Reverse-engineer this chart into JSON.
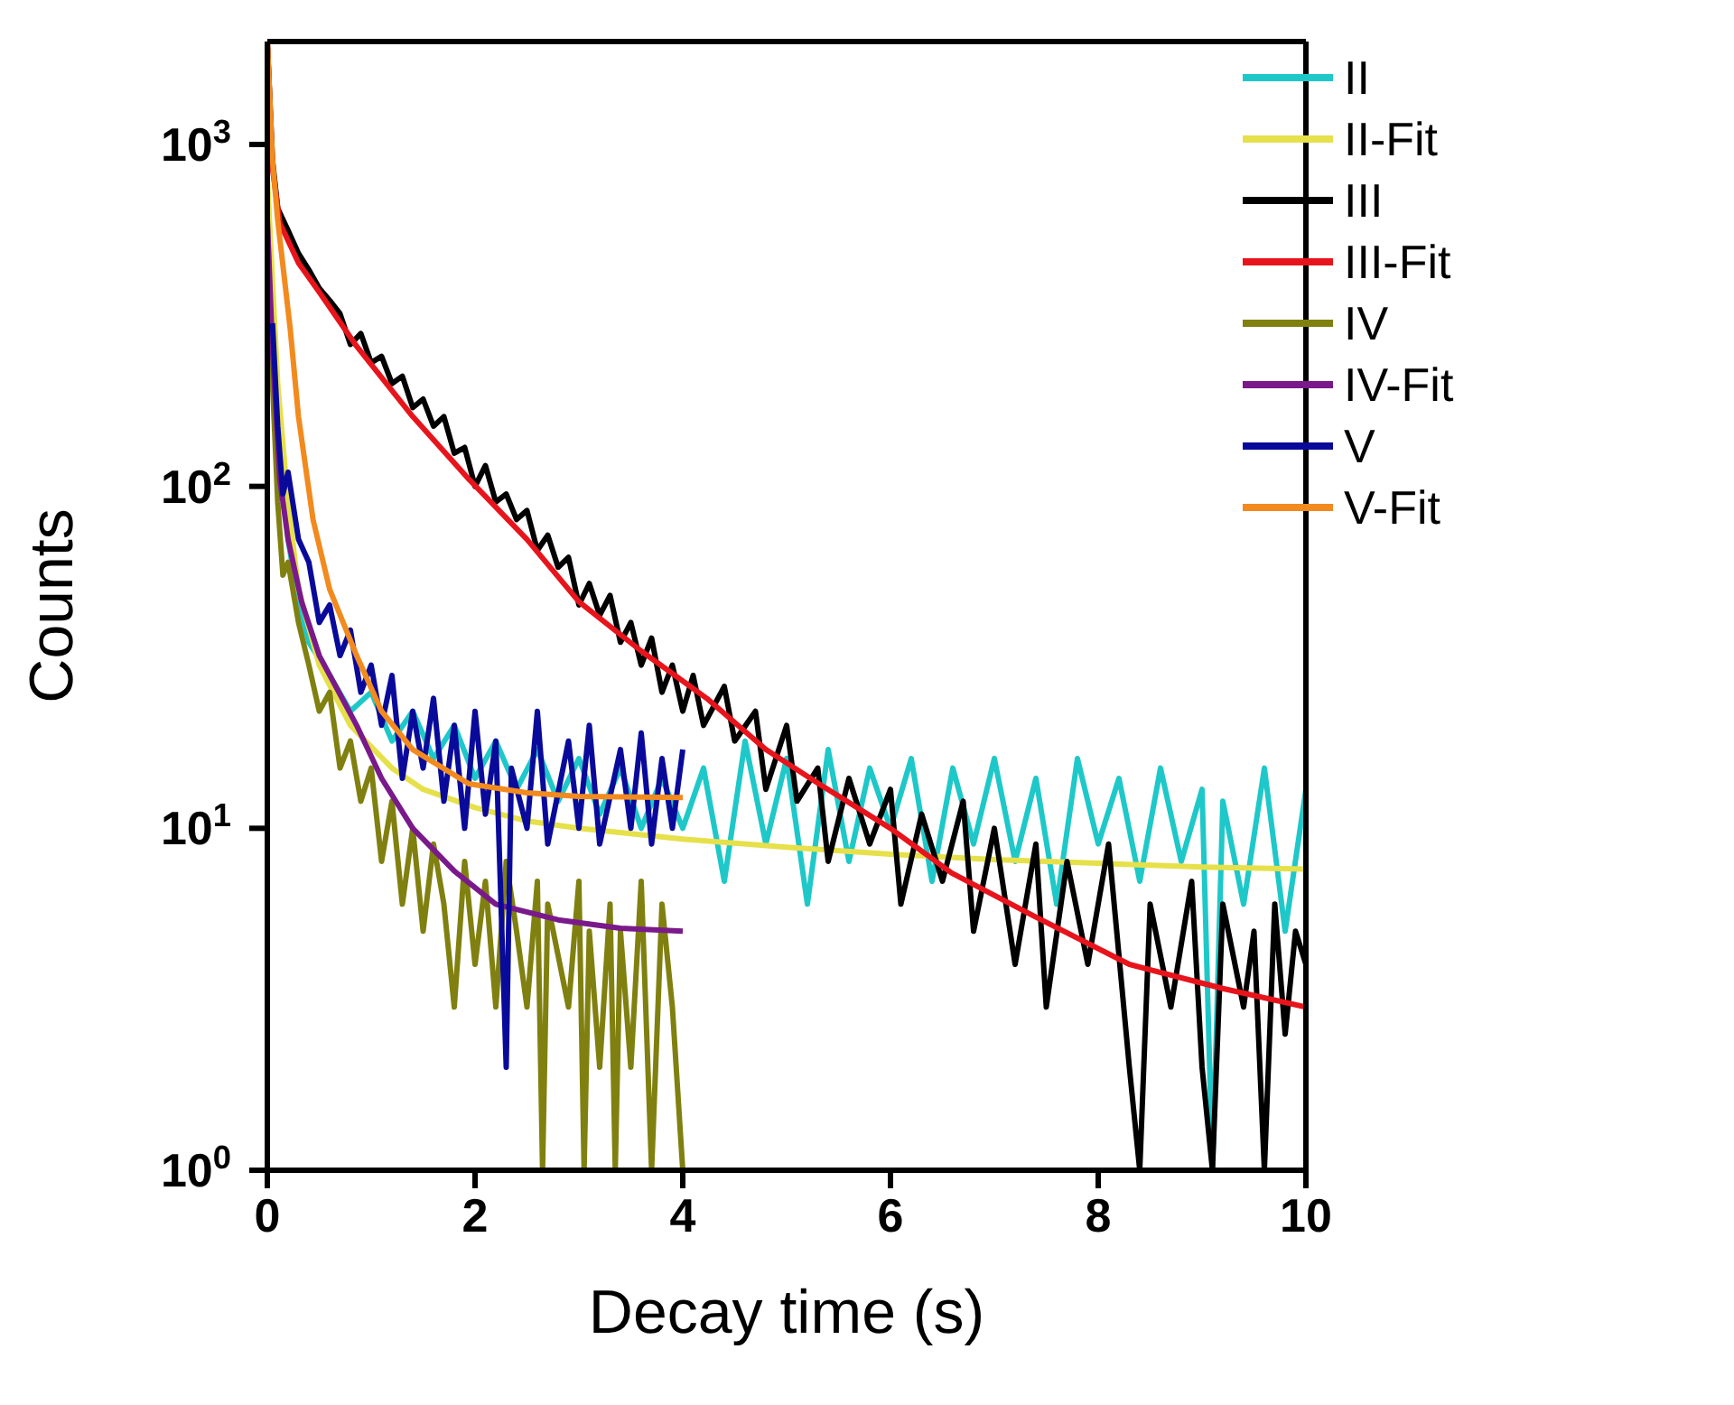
{
  "chart_data": {
    "type": "line",
    "xlabel": "Decay time (s)",
    "ylabel": "Counts",
    "log": "y",
    "grid": false,
    "legend": "top right",
    "marker": "none",
    "line_style": "solid",
    "xlim": [
      0,
      10
    ],
    "xticks": [
      0,
      2,
      4,
      6,
      8,
      10
    ],
    "ylim": [
      1,
      2000
    ],
    "yticks": [
      {
        "value": 1,
        "label": "10$^{0}$"
      },
      {
        "value": 10,
        "label": "10$^{1}$"
      },
      {
        "value": 100,
        "label": "10$^{2}$"
      },
      {
        "value": 1000,
        "label": "10$^{3}$"
      }
    ],
    "series": [
      {
        "name": "II",
        "color": "#1fc8c8",
        "x": [
          0.1,
          0.2,
          0.3,
          0.4,
          0.6,
          0.8,
          1.0,
          1.2,
          1.4,
          1.6,
          1.8,
          2.0,
          2.2,
          2.4,
          2.6,
          2.8,
          3.0,
          3.2,
          3.4,
          3.6,
          3.8,
          4.0,
          4.2,
          4.4,
          4.6,
          4.8,
          5.0,
          5.2,
          5.4,
          5.6,
          5.8,
          6.0,
          6.2,
          6.4,
          6.6,
          6.8,
          7.0,
          7.2,
          7.4,
          7.6,
          7.8,
          8.0,
          8.2,
          8.4,
          8.6,
          8.8,
          9.0,
          9.1,
          9.2,
          9.4,
          9.6,
          9.8,
          10
        ],
        "values": [
          150,
          70,
          45,
          35,
          28,
          22,
          25,
          18,
          22,
          16,
          20,
          14,
          18,
          13,
          17,
          12,
          16,
          11,
          15,
          10,
          14,
          10,
          15,
          7,
          18,
          9,
          16,
          6,
          17,
          8,
          15,
          10,
          16,
          7,
          15,
          9,
          16,
          8,
          14,
          6,
          16,
          9,
          14,
          7,
          15,
          8,
          13,
          1,
          12,
          6,
          15,
          5,
          13
        ]
      },
      {
        "name": "II-Fit",
        "color": "#e6e04a",
        "x": [
          0,
          0.1,
          0.2,
          0.3,
          0.5,
          0.8,
          1.2,
          1.5,
          2,
          2.5,
          3,
          4,
          5,
          6,
          7,
          8,
          9,
          10
        ],
        "values": [
          800,
          200,
          90,
          50,
          30,
          20,
          15,
          13,
          11.5,
          10.5,
          10,
          9.3,
          8.8,
          8.4,
          8.1,
          7.9,
          7.7,
          7.6
        ]
      },
      {
        "name": "III",
        "color": "#000000",
        "x": [
          0,
          0.05,
          0.1,
          0.2,
          0.3,
          0.4,
          0.5,
          0.6,
          0.7,
          0.8,
          0.9,
          1.0,
          1.1,
          1.2,
          1.3,
          1.4,
          1.5,
          1.6,
          1.7,
          1.8,
          1.9,
          2.0,
          2.1,
          2.2,
          2.3,
          2.4,
          2.5,
          2.6,
          2.7,
          2.8,
          2.9,
          3.0,
          3.1,
          3.2,
          3.3,
          3.4,
          3.5,
          3.6,
          3.7,
          3.8,
          3.9,
          4.0,
          4.1,
          4.2,
          4.4,
          4.5,
          4.7,
          4.8,
          5.0,
          5.1,
          5.3,
          5.4,
          5.6,
          5.8,
          6.0,
          6.1,
          6.3,
          6.5,
          6.7,
          6.8,
          7.0,
          7.2,
          7.4,
          7.5,
          7.7,
          7.9,
          8.1,
          8.3,
          8.4,
          8.5,
          8.7,
          8.9,
          9.0,
          9.1,
          9.2,
          9.4,
          9.5,
          9.6,
          9.7,
          9.8,
          9.9,
          10
        ],
        "values": [
          2000,
          900,
          650,
          560,
          480,
          430,
          380,
          350,
          320,
          260,
          280,
          230,
          240,
          200,
          210,
          170,
          180,
          150,
          160,
          125,
          130,
          100,
          115,
          90,
          95,
          80,
          85,
          65,
          72,
          58,
          62,
          45,
          52,
          42,
          48,
          35,
          40,
          30,
          36,
          25,
          30,
          22,
          28,
          20,
          26,
          18,
          22,
          13,
          20,
          12,
          15,
          8,
          14,
          9,
          13,
          6,
          11,
          7,
          12,
          5,
          10,
          4,
          9,
          3,
          8,
          4,
          9,
          2,
          1,
          6,
          3,
          7,
          2,
          1,
          6,
          3,
          5,
          1,
          6,
          2.5,
          5,
          4
        ]
      },
      {
        "name": "III-Fit",
        "color": "#e8141c",
        "x": [
          0,
          0.05,
          0.12,
          0.3,
          0.5,
          0.86,
          1.4,
          1.94,
          2.5,
          3.0,
          3.6,
          4.23,
          4.8,
          5.31,
          6,
          6.59,
          7.4,
          8.3,
          9.2,
          10
        ],
        "values": [
          2000,
          850,
          590,
          450,
          370,
          257,
          160,
          105,
          70,
          46,
          33,
          24,
          17,
          13.5,
          10,
          7.4,
          5.5,
          4.0,
          3.4,
          3.0
        ]
      },
      {
        "name": "IV",
        "color": "#808010",
        "x": [
          0,
          0.05,
          0.1,
          0.15,
          0.2,
          0.3,
          0.4,
          0.5,
          0.6,
          0.7,
          0.8,
          0.9,
          1.0,
          1.1,
          1.2,
          1.3,
          1.4,
          1.5,
          1.6,
          1.7,
          1.8,
          1.9,
          2.0,
          2.1,
          2.2,
          2.3,
          2.4,
          2.5,
          2.6,
          2.65,
          2.7,
          2.9,
          3.0,
          3.05,
          3.1,
          3.2,
          3.3,
          3.35,
          3.4,
          3.5,
          3.6,
          3.7,
          3.8,
          3.9,
          4.0
        ],
        "values": [
          600,
          200,
          90,
          55,
          60,
          40,
          30,
          22,
          25,
          15,
          18,
          12,
          15,
          8,
          12,
          6,
          10,
          5,
          9,
          6,
          3,
          8,
          4,
          7,
          3,
          8,
          5,
          3,
          7,
          1,
          6,
          3,
          7,
          1,
          5,
          2,
          6,
          1,
          5,
          2,
          7,
          1,
          6,
          3,
          1
        ]
      },
      {
        "name": "IV-Fit",
        "color": "#7a1a8a",
        "x": [
          0,
          0.05,
          0.12,
          0.2,
          0.33,
          0.5,
          0.86,
          1.1,
          1.4,
          1.8,
          2.2,
          2.8,
          3.4,
          4
        ],
        "values": [
          600,
          250,
          105,
          70,
          46,
          32,
          20,
          14,
          10,
          7.5,
          6,
          5.4,
          5.1,
          5.0
        ]
      },
      {
        "name": "V",
        "color": "#0a0a9a",
        "x": [
          0.05,
          0.1,
          0.15,
          0.2,
          0.3,
          0.4,
          0.5,
          0.6,
          0.7,
          0.8,
          0.9,
          1.0,
          1.1,
          1.2,
          1.3,
          1.4,
          1.5,
          1.6,
          1.7,
          1.8,
          1.9,
          2.0,
          2.1,
          2.2,
          2.3,
          2.35,
          2.5,
          2.6,
          2.7,
          2.9,
          3.0,
          3.1,
          3.2,
          3.4,
          3.5,
          3.6,
          3.7,
          3.8,
          3.9,
          4.0
        ],
        "values": [
          300,
          150,
          95,
          110,
          70,
          60,
          40,
          45,
          32,
          38,
          25,
          30,
          20,
          28,
          14,
          22,
          15,
          24,
          12,
          20,
          10,
          22,
          11,
          18,
          2,
          15,
          10,
          22,
          9,
          18,
          10,
          20,
          9,
          17,
          10,
          19,
          9,
          16,
          10,
          17
        ]
      },
      {
        "name": "V-Fit",
        "color": "#f28a1e",
        "x": [
          0,
          0.05,
          0.1,
          0.22,
          0.3,
          0.44,
          0.6,
          0.86,
          1.1,
          1.4,
          1.94,
          2.5,
          3,
          4
        ],
        "values": [
          2000,
          900,
          600,
          290,
          160,
          80,
          50,
          32,
          22,
          17,
          13.5,
          12.7,
          12.4,
          12.3
        ]
      }
    ]
  }
}
